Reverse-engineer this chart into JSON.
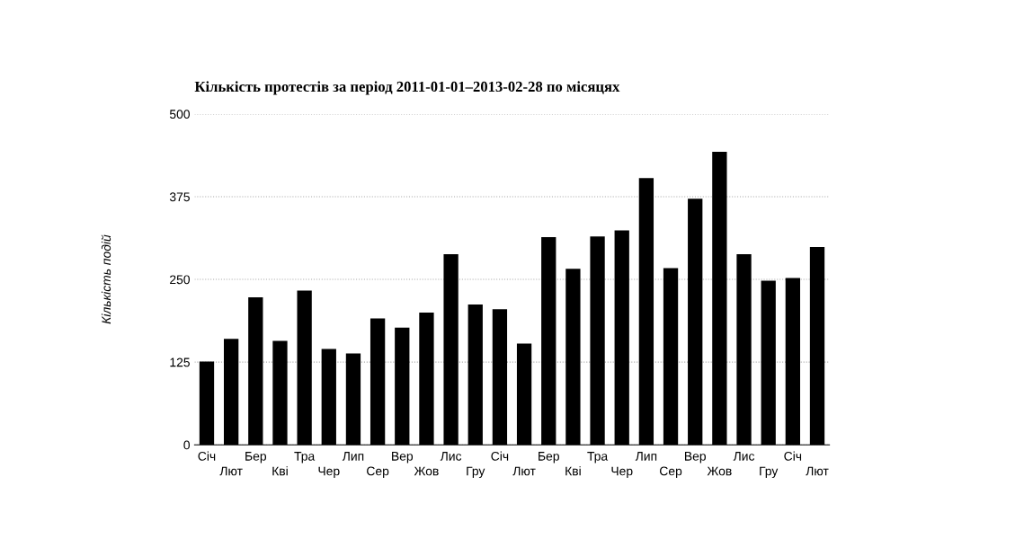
{
  "chart_data": {
    "type": "bar",
    "title": "Кількість протестів за період 2011-01-01–2013-02-28 по місяцях",
    "ylabel": "Кількість подій",
    "categories": [
      "Січ",
      "Лют",
      "Бер",
      "Кві",
      "Тра",
      "Чер",
      "Лип",
      "Сер",
      "Вер",
      "Жов",
      "Лис",
      "Гру",
      "Січ",
      "Лют",
      "Бер",
      "Кві",
      "Тра",
      "Чер",
      "Лип",
      "Сер",
      "Вер",
      "Жов",
      "Лис",
      "Гру",
      "Січ",
      "Лют"
    ],
    "values": [
      126,
      160,
      223,
      157,
      233,
      145,
      138,
      191,
      177,
      200,
      288,
      212,
      205,
      153,
      314,
      266,
      315,
      324,
      403,
      267,
      372,
      443,
      288,
      248,
      252,
      299
    ],
    "color": "#000000",
    "ylim": [
      0,
      500
    ],
    "yticks": [
      0,
      125,
      250,
      375,
      500
    ],
    "grid": "y"
  }
}
